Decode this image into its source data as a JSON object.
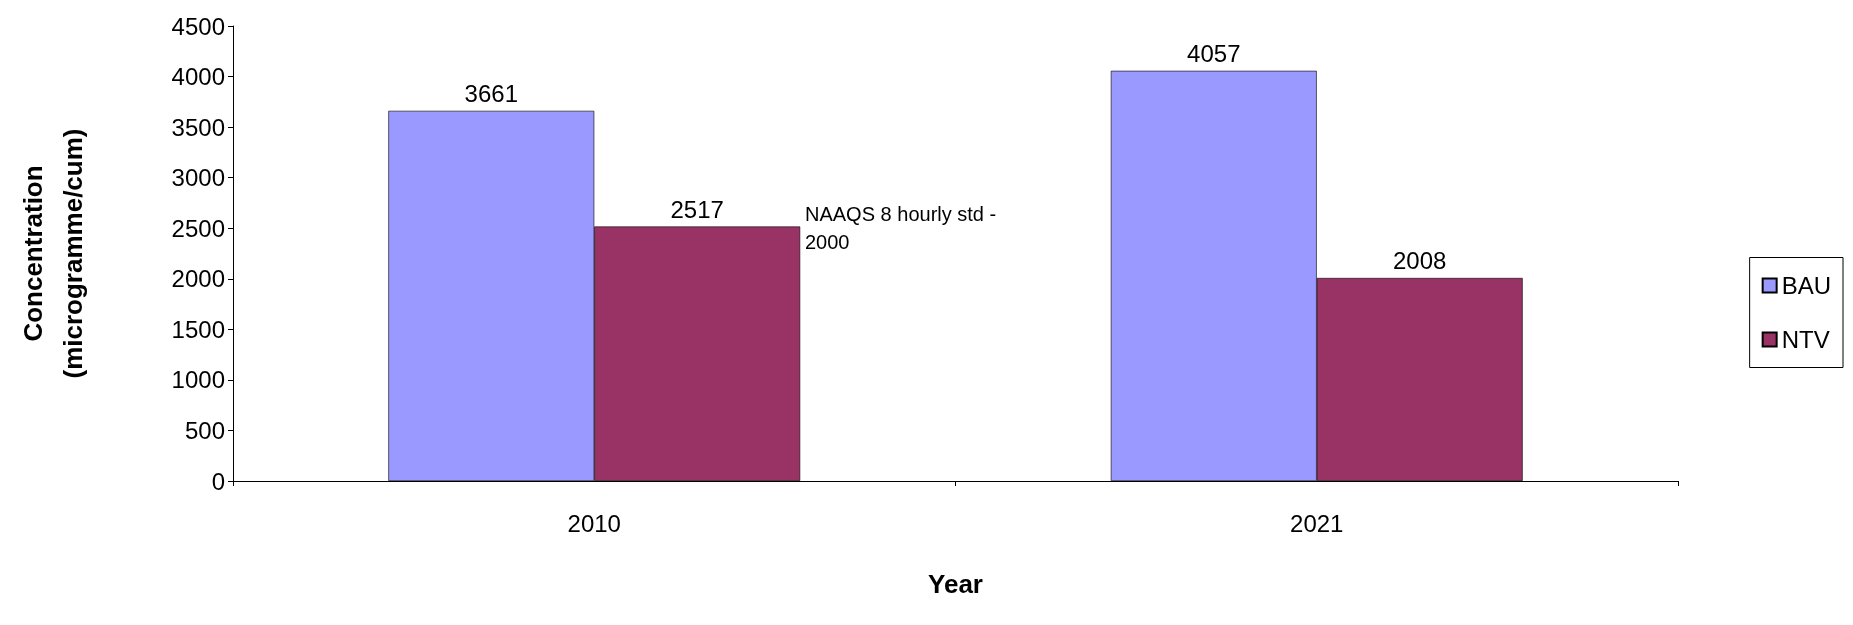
{
  "chart_data": {
    "type": "bar",
    "xlabel": "Year",
    "ylabel": "Concentration\n(microgramme/cum)",
    "categories": [
      "2010",
      "2021"
    ],
    "series": [
      {
        "name": "BAU",
        "color": "#9999ff",
        "values": [
          3661,
          4057
        ]
      },
      {
        "name": "NTV",
        "color": "#993366",
        "values": [
          2517,
          2008
        ]
      }
    ],
    "ylim": [
      0,
      4500
    ],
    "yticks": [
      0,
      500,
      1000,
      1500,
      2000,
      2500,
      3000,
      3500,
      4000,
      4500
    ],
    "grid": false,
    "legend": "right",
    "data_labels": true,
    "annotations": [
      "NAAQS 8 hourly std - 2000"
    ]
  }
}
